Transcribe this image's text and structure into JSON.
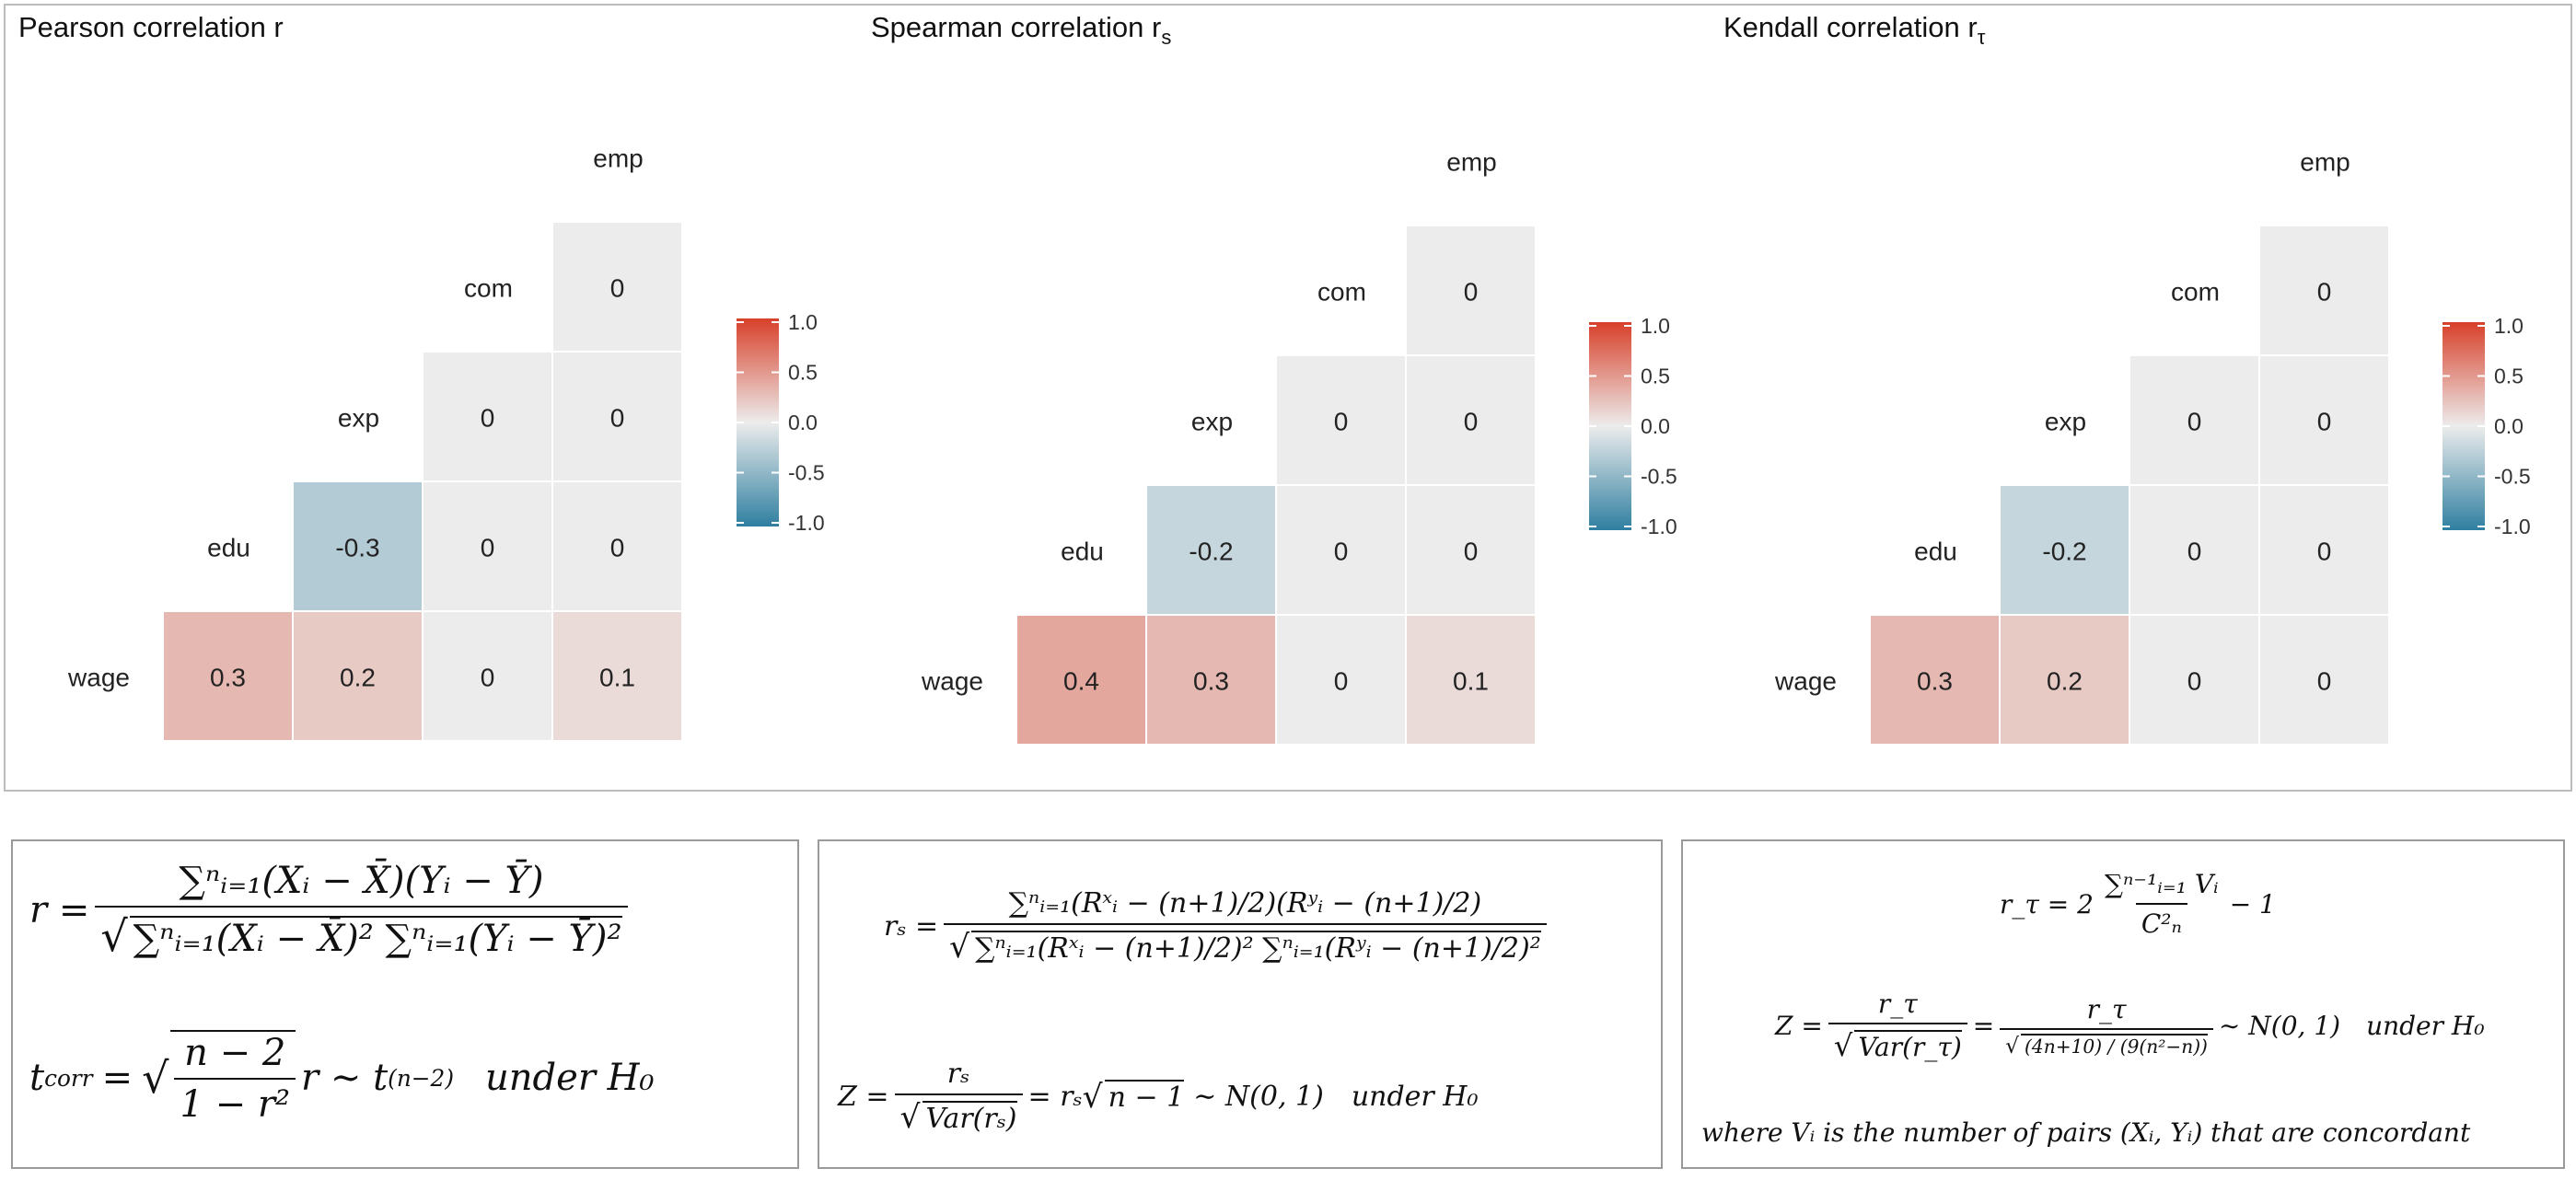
{
  "colors": {
    "low": "#2f7fa0",
    "mid": "#ececec",
    "high": "#d8402a",
    "grid": "#ffffff"
  },
  "chart_data": [
    {
      "type": "heatmap",
      "title": "Pearson correlation r",
      "variables": [
        "wage",
        "edu",
        "exp",
        "com",
        "emp"
      ],
      "lower_triangle": true,
      "cells": [
        {
          "row": "wage",
          "col": "wage",
          "value": 0.3
        },
        {
          "row": "wage",
          "col": "edu",
          "value": 0.2
        },
        {
          "row": "wage",
          "col": "exp",
          "value": 0
        },
        {
          "row": "wage",
          "col": "com",
          "value": 0.1
        },
        {
          "row": "edu",
          "col": "edu",
          "value": -0.3
        },
        {
          "row": "edu",
          "col": "exp",
          "value": 0
        },
        {
          "row": "edu",
          "col": "com",
          "value": 0
        },
        {
          "row": "exp",
          "col": "exp",
          "value": 0
        },
        {
          "row": "exp",
          "col": "com",
          "value": 0
        },
        {
          "row": "com",
          "col": "com",
          "value": 0
        }
      ],
      "legend": {
        "ticks": [
          "1.0",
          "0.5",
          "0.0",
          "-0.5",
          "-1.0"
        ],
        "range": [
          -1,
          1
        ],
        "placement": "right"
      }
    },
    {
      "type": "heatmap",
      "title": "Spearman correlation r",
      "title_subscript": "s",
      "variables": [
        "wage",
        "edu",
        "exp",
        "com",
        "emp"
      ],
      "lower_triangle": true,
      "cells": [
        {
          "row": "wage",
          "col": "wage",
          "value": 0.4
        },
        {
          "row": "wage",
          "col": "edu",
          "value": 0.3
        },
        {
          "row": "wage",
          "col": "exp",
          "value": 0
        },
        {
          "row": "wage",
          "col": "com",
          "value": 0.1
        },
        {
          "row": "edu",
          "col": "edu",
          "value": -0.2
        },
        {
          "row": "edu",
          "col": "exp",
          "value": 0
        },
        {
          "row": "edu",
          "col": "com",
          "value": 0
        },
        {
          "row": "exp",
          "col": "exp",
          "value": 0
        },
        {
          "row": "exp",
          "col": "com",
          "value": 0
        },
        {
          "row": "com",
          "col": "com",
          "value": 0
        }
      ],
      "legend": {
        "ticks": [
          "1.0",
          "0.5",
          "0.0",
          "-0.5",
          "-1.0"
        ],
        "range": [
          -1,
          1
        ],
        "placement": "right"
      }
    },
    {
      "type": "heatmap",
      "title": "Kendall correlation r",
      "title_subscript": "τ",
      "variables": [
        "wage",
        "edu",
        "exp",
        "com",
        "emp"
      ],
      "lower_triangle": true,
      "cells": [
        {
          "row": "wage",
          "col": "wage",
          "value": 0.3
        },
        {
          "row": "wage",
          "col": "edu",
          "value": 0.2
        },
        {
          "row": "wage",
          "col": "exp",
          "value": 0
        },
        {
          "row": "wage",
          "col": "com",
          "value": 0
        },
        {
          "row": "edu",
          "col": "edu",
          "value": -0.2
        },
        {
          "row": "edu",
          "col": "exp",
          "value": 0
        },
        {
          "row": "edu",
          "col": "com",
          "value": 0
        },
        {
          "row": "exp",
          "col": "exp",
          "value": 0
        },
        {
          "row": "exp",
          "col": "com",
          "value": 0
        },
        {
          "row": "com",
          "col": "com",
          "value": 0
        }
      ],
      "legend": {
        "ticks": [
          "1.0",
          "0.5",
          "0.0",
          "-0.5",
          "-1.0"
        ],
        "range": [
          -1,
          1
        ],
        "placement": "right"
      }
    }
  ],
  "formulas": {
    "pearson": {
      "r_lhs": "r =",
      "r_num": "∑ⁿᵢ₌₁(Xᵢ − X̄)(Yᵢ − Ȳ)",
      "r_den": "∑ⁿᵢ₌₁(Xᵢ − X̄)² ∑ⁿᵢ₌₁(Yᵢ − Ȳ)²",
      "t_lhs": "t",
      "t_sub": "corr",
      "t_eq": "=",
      "t_num": "n − 2",
      "t_den": "1 − r²",
      "t_rhs": "r ∼ t",
      "t_rhs_sub": "(n−2)",
      "t_tail": "under H₀"
    },
    "spearman": {
      "rs_lhs": "rₛ =",
      "rs_num": "∑ⁿᵢ₌₁(Rˣᵢ − (n+1)/2)(Rʸᵢ − (n+1)/2)",
      "rs_den": "∑ⁿᵢ₌₁(Rˣᵢ − (n+1)/2)² ∑ⁿᵢ₌₁(Rʸᵢ − (n+1)/2)²",
      "z_lhs": "Z =",
      "z_num": "rₛ",
      "z_den": "Var(rₛ)",
      "z_rhs": "= rₛ",
      "z_sqrt": "n − 1",
      "z_tail": "∼ N(0, 1)",
      "z_under": "under H₀"
    },
    "kendall": {
      "rt_lhs": "r_τ = 2",
      "rt_num": "∑ⁿ⁻¹ᵢ₌₁ Vᵢ",
      "rt_den": "C²ₙ",
      "rt_tail": "− 1",
      "z_lhs": "Z =",
      "z1_num": "r_τ",
      "z1_den": "Var(r_τ)",
      "z_eq": "=",
      "z2_num": "r_τ",
      "z2_den": "(4n+10) / (9(n²−n))",
      "z_tail": "∼ N(0, 1)",
      "z_under": "under H₀",
      "note": "where Vᵢ is the number of pairs (Xᵢ, Yᵢ) that are concordant"
    }
  }
}
